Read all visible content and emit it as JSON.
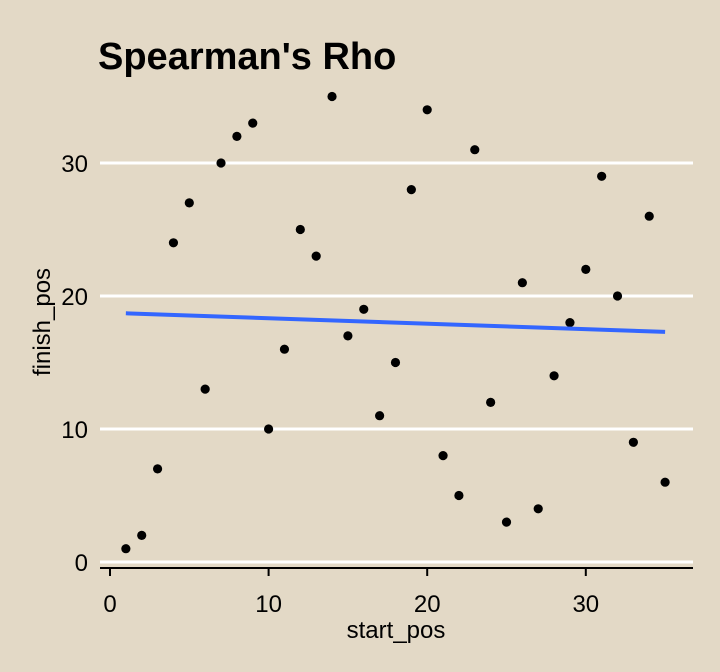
{
  "chart_data": {
    "type": "scatter",
    "title": "Spearman's Rho",
    "xlabel": "start_pos",
    "ylabel": "finish_pos",
    "xlim": [
      0,
      36
    ],
    "ylim": [
      0,
      35
    ],
    "xticks": [
      0,
      10,
      20,
      30
    ],
    "yticks": [
      0,
      10,
      20,
      30
    ],
    "grid": "horizontal-major",
    "points": [
      {
        "x": 1,
        "y": 1
      },
      {
        "x": 2,
        "y": 2
      },
      {
        "x": 3,
        "y": 7
      },
      {
        "x": 4,
        "y": 24
      },
      {
        "x": 5,
        "y": 27
      },
      {
        "x": 6,
        "y": 13
      },
      {
        "x": 7,
        "y": 30
      },
      {
        "x": 8,
        "y": 32
      },
      {
        "x": 9,
        "y": 33
      },
      {
        "x": 10,
        "y": 10
      },
      {
        "x": 11,
        "y": 16
      },
      {
        "x": 12,
        "y": 25
      },
      {
        "x": 13,
        "y": 23
      },
      {
        "x": 14,
        "y": 35
      },
      {
        "x": 15,
        "y": 17
      },
      {
        "x": 16,
        "y": 19
      },
      {
        "x": 17,
        "y": 11
      },
      {
        "x": 18,
        "y": 15
      },
      {
        "x": 19,
        "y": 28
      },
      {
        "x": 20,
        "y": 34
      },
      {
        "x": 21,
        "y": 8
      },
      {
        "x": 22,
        "y": 5
      },
      {
        "x": 23,
        "y": 31
      },
      {
        "x": 24,
        "y": 12
      },
      {
        "x": 25,
        "y": 3
      },
      {
        "x": 26,
        "y": 21
      },
      {
        "x": 27,
        "y": 4
      },
      {
        "x": 28,
        "y": 14
      },
      {
        "x": 29,
        "y": 18
      },
      {
        "x": 30,
        "y": 22
      },
      {
        "x": 31,
        "y": 29
      },
      {
        "x": 32,
        "y": 20
      },
      {
        "x": 33,
        "y": 9
      },
      {
        "x": 34,
        "y": 26
      },
      {
        "x": 35,
        "y": 6
      }
    ],
    "trend_line": {
      "x": [
        1,
        35
      ],
      "y": [
        18.7,
        17.3
      ]
    },
    "colors": {
      "background": "#e3d9c6",
      "points": "#000000",
      "trend": "#3366ff",
      "grid": "#ffffff"
    }
  }
}
